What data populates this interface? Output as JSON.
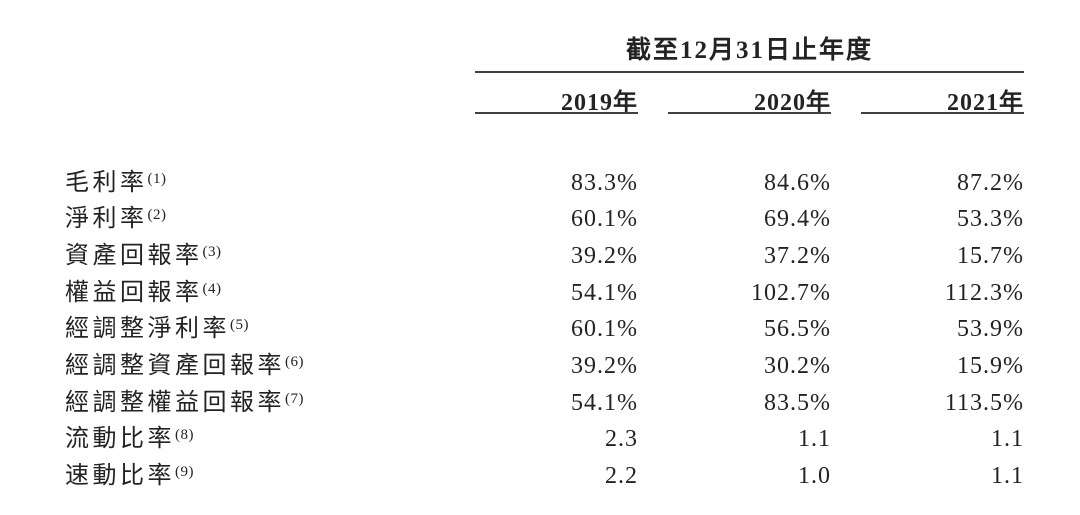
{
  "table": {
    "period_header": "截至12月31日止年度",
    "columns": [
      "2019年",
      "2020年",
      "2021年"
    ],
    "rows": [
      {
        "label": "毛利率",
        "footnote": "(1)",
        "values": [
          "83.3%",
          "84.6%",
          "87.2%"
        ]
      },
      {
        "label": "淨利率",
        "footnote": "(2)",
        "values": [
          "60.1%",
          "69.4%",
          "53.3%"
        ]
      },
      {
        "label": "資產回報率",
        "footnote": "(3)",
        "values": [
          "39.2%",
          "37.2%",
          "15.7%"
        ]
      },
      {
        "label": "權益回報率",
        "footnote": "(4)",
        "values": [
          "54.1%",
          "102.7%",
          "112.3%"
        ]
      },
      {
        "label": "經調整淨利率",
        "footnote": "(5)",
        "values": [
          "60.1%",
          "56.5%",
          "53.9%"
        ]
      },
      {
        "label": "經調整資產回報率",
        "footnote": "(6)",
        "values": [
          "39.2%",
          "30.2%",
          "15.9%"
        ]
      },
      {
        "label": "經調整權益回報率",
        "footnote": "(7)",
        "values": [
          "54.1%",
          "83.5%",
          "113.5%"
        ]
      },
      {
        "label": "流動比率",
        "footnote": "(8)",
        "values": [
          "2.3",
          "1.1",
          "1.1"
        ]
      },
      {
        "label": "速動比率",
        "footnote": "(9)",
        "values": [
          "2.2",
          "1.0",
          "1.1"
        ]
      }
    ]
  },
  "colors": {
    "background": "#ffffff",
    "text": "#232323",
    "rule": "#414141"
  }
}
